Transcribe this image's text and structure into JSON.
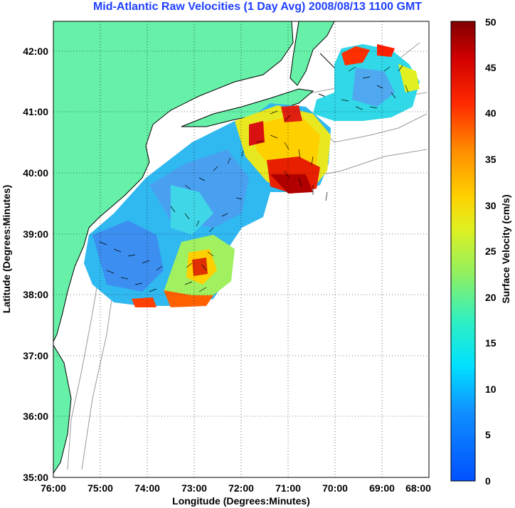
{
  "title": "Mid-Atlantic Raw Velocities (1 Day Avg) 2008/08/13 1100 GMT",
  "map": {
    "x_label": "Longitude (Degrees:Minutes)",
    "y_label": "Latitude (Degrees:Minutes)",
    "x_ticks": [
      "76:00",
      "75:00",
      "74:00",
      "73:00",
      "72:00",
      "71:00",
      "70:00",
      "69:00",
      "68:00"
    ],
    "y_ticks": [
      "42:00",
      "41:00",
      "40:00",
      "39:00",
      "38:00",
      "37:00",
      "36:00",
      "35:00"
    ],
    "land_color": "#66f0a8",
    "grid": "dotted"
  },
  "colorbar": {
    "label": "Surface Velocity (cm/s)",
    "ticks": [
      "50",
      "45",
      "40",
      "35",
      "30",
      "25",
      "20",
      "15",
      "10",
      "5",
      "0"
    ],
    "range": [
      0,
      50
    ],
    "colormap": "jet"
  }
}
